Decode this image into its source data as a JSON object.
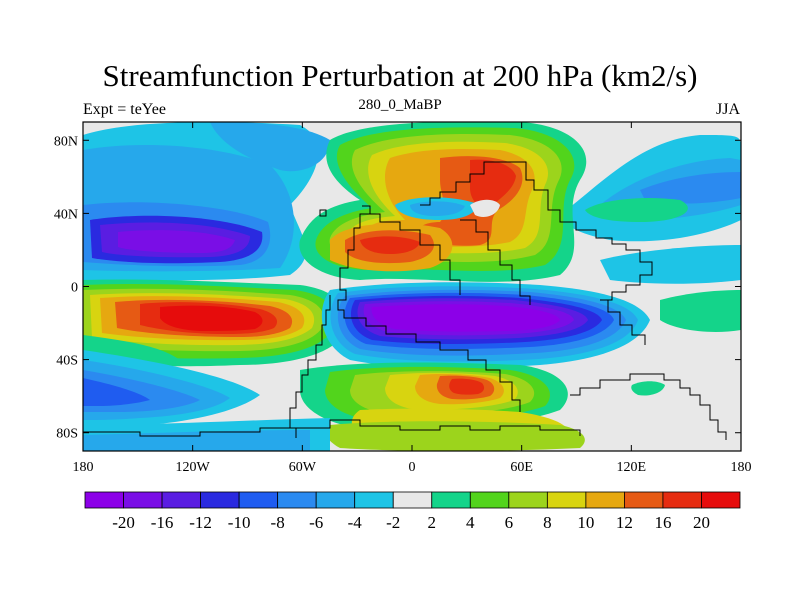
{
  "chart_data": {
    "type": "heatmap",
    "title": "Streamfunction Perturbation at 200 hPa (km2/s)",
    "left_string": "Expt = teYee",
    "center_string": "280_0_MaBP",
    "right_string": "JJA",
    "x_ticks": [
      {
        "lon": -180,
        "label": "180"
      },
      {
        "lon": -120,
        "label": "120W"
      },
      {
        "lon": -60,
        "label": "60W"
      },
      {
        "lon": 0,
        "label": "0"
      },
      {
        "lon": 60,
        "label": "60E"
      },
      {
        "lon": 120,
        "label": "120E"
      },
      {
        "lon": 180,
        "label": "180"
      }
    ],
    "y_ticks": [
      {
        "lat": 80,
        "label": "80N"
      },
      {
        "lat": 40,
        "label": "40N"
      },
      {
        "lat": 0,
        "label": "0"
      },
      {
        "lat": -40,
        "label": "40S"
      },
      {
        "lat": -80,
        "label": "80S"
      }
    ],
    "xlim": [
      -180,
      180
    ],
    "ylim": [
      -90,
      90
    ],
    "colorbar": {
      "levels": [
        "-20",
        "-16",
        "-12",
        "-10",
        "-8",
        "-6",
        "-4",
        "-2",
        "2",
        "4",
        "6",
        "8",
        "10",
        "12",
        "16",
        "20"
      ],
      "colors": [
        "#8c00e8",
        "#7a0ee6",
        "#5a1de2",
        "#2a2ae0",
        "#1f5cf0",
        "#2b8af0",
        "#26a8eb",
        "#1ec4e6",
        "#e8e8e8",
        "#14d48a",
        "#52d41c",
        "#9cd41c",
        "#d8d410",
        "#e6a810",
        "#e65a14",
        "#e62c10",
        "#e60c0c"
      ]
    },
    "features": [
      {
        "name": "north-pacific-low",
        "lon": -120,
        "lat": 25,
        "value": -19
      },
      {
        "name": "south-pacific-high",
        "lon": -110,
        "lat": -15,
        "value": 21
      },
      {
        "name": "south-indian-low",
        "lon": 35,
        "lat": -25,
        "value": -21
      },
      {
        "name": "north-african-high",
        "lon": 10,
        "lat": 22,
        "value": 14
      },
      {
        "name": "central-asian-high",
        "lon": 60,
        "lat": 55,
        "value": 15
      },
      {
        "name": "southern-ocean-high",
        "lon": 45,
        "lat": -55,
        "value": 13
      },
      {
        "name": "north-atlantic-low",
        "lon": -65,
        "lat": 75,
        "value": -9
      },
      {
        "name": "north-pacific-low-east",
        "lon": 160,
        "lat": 40,
        "value": -9
      }
    ]
  },
  "colors": {
    "land_outline": "#000000",
    "frame": "#000000"
  }
}
